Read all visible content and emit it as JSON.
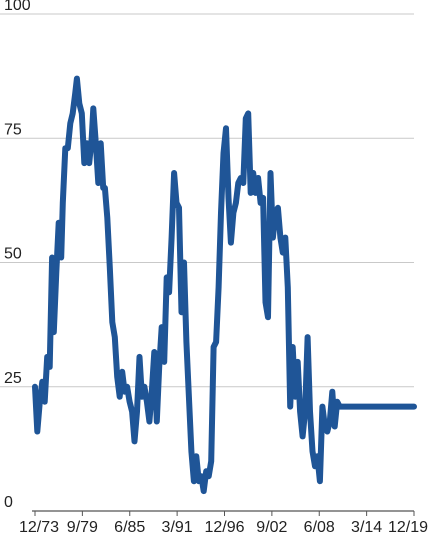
{
  "chart_data": {
    "type": "line",
    "title": "",
    "xlabel": "",
    "ylabel": "",
    "ylim": [
      0,
      100
    ],
    "yticks": [
      0,
      25,
      50,
      75,
      100
    ],
    "xlim": [
      1973.92,
      2019.92
    ],
    "xticks": [
      {
        "label": "12/73",
        "value": 1973.92
      },
      {
        "label": "9/79",
        "value": 1979.67
      },
      {
        "label": "6/85",
        "value": 1985.42
      },
      {
        "label": "3/91",
        "value": 1991.17
      },
      {
        "label": "12/96",
        "value": 1996.92
      },
      {
        "label": "9/02",
        "value": 2002.67
      },
      {
        "label": "6/08",
        "value": 2008.42
      },
      {
        "label": "3/14",
        "value": 2014.17
      },
      {
        "label": "12/19",
        "value": 2019.92
      }
    ],
    "grid": true,
    "legend": "none",
    "line_color": "#1f5597",
    "series": [
      {
        "x": [
          1973.92,
          1974.2,
          1974.5,
          1974.8,
          1975.1,
          1975.4,
          1975.7,
          1976.0,
          1976.2,
          1976.5,
          1976.8,
          1977.1,
          1977.3,
          1977.6,
          1977.9,
          1978.2,
          1978.5,
          1978.8,
          1979.0,
          1979.3,
          1979.6,
          1979.9,
          1980.2,
          1980.5,
          1980.8,
          1981.0,
          1981.3,
          1981.6,
          1981.9,
          1982.2,
          1982.4,
          1982.7,
          1983.0,
          1983.3,
          1983.6,
          1983.9,
          1984.2,
          1984.5,
          1984.8,
          1985.1,
          1985.4,
          1985.7,
          1986.0,
          1986.3,
          1986.6,
          1986.9,
          1987.2,
          1987.5,
          1987.8,
          1988.1,
          1988.4,
          1988.7,
          1989.0,
          1989.3,
          1989.6,
          1989.9,
          1990.2,
          1990.5,
          1990.8,
          1991.1,
          1991.4,
          1991.7,
          1992.0,
          1992.3,
          1992.6,
          1992.9,
          1993.2,
          1993.5,
          1993.8,
          1994.1,
          1994.4,
          1994.7,
          1995.0,
          1995.3,
          1995.6,
          1995.9,
          1996.2,
          1996.5,
          1996.8,
          1997.1,
          1997.4,
          1997.7,
          1998.0,
          1998.3,
          1998.6,
          1998.9,
          1999.2,
          1999.5,
          1999.8,
          2000.1,
          2000.4,
          2000.7,
          2001.0,
          2001.3,
          2001.6,
          2001.9,
          2002.2,
          2002.5,
          2002.8,
          2003.1,
          2003.4,
          2003.7,
          2004.0,
          2004.3,
          2004.6,
          2004.9,
          2005.2,
          2005.5,
          2005.8,
          2006.1,
          2006.4,
          2006.7,
          2007.0,
          2007.3,
          2007.6,
          2007.9,
          2008.2,
          2008.5,
          2008.8,
          2009.1,
          2009.4,
          2009.7,
          2010.0,
          2010.3,
          2010.6,
          2010.9,
          2011.2,
          2011.5,
          2011.8,
          2012.1,
          2012.4,
          2012.7,
          2013.0,
          2013.3,
          2013.6,
          2013.9,
          2014.2,
          2014.5,
          2014.8,
          2015.1,
          2015.4,
          2015.7,
          2016.0,
          2016.3,
          2016.6,
          2016.9,
          2017.2,
          2017.5,
          2017.8,
          2018.1,
          2018.4,
          2018.7,
          2019.0,
          2019.3,
          2019.6,
          2019.92
        ],
        "y": [
          25,
          16,
          22,
          26,
          22,
          31,
          29,
          51,
          36,
          48,
          58,
          51,
          62,
          73,
          73,
          78,
          80,
          84,
          87,
          82,
          80,
          70,
          74,
          70,
          75,
          81,
          74,
          66,
          74,
          65,
          65,
          59,
          49,
          38,
          35,
          27,
          23,
          28,
          24,
          25,
          22,
          20,
          14,
          20,
          31,
          23,
          25,
          22,
          18,
          24,
          32,
          18,
          29,
          37,
          30,
          47,
          44,
          55,
          68,
          62,
          61,
          40,
          50,
          34,
          23,
          12,
          6,
          11,
          6,
          7,
          4,
          8,
          7,
          10,
          33,
          34,
          45,
          60,
          72,
          77,
          63,
          54,
          60,
          62,
          66,
          67,
          66,
          79,
          80,
          64,
          68,
          64,
          67,
          62,
          63,
          42,
          39,
          68,
          55,
          60,
          61,
          55,
          52,
          55,
          45,
          21,
          33,
          23,
          30,
          20,
          15,
          20,
          35,
          20,
          12,
          9,
          11,
          6,
          21,
          17,
          16,
          18,
          24,
          17,
          22,
          21,
          21,
          21,
          21,
          21,
          21,
          21,
          21,
          21,
          21,
          21,
          21,
          21,
          21,
          21,
          21,
          21,
          21,
          21,
          21,
          21,
          21,
          21,
          21,
          21,
          21,
          21,
          21,
          21,
          21,
          21
        ]
      }
    ]
  }
}
